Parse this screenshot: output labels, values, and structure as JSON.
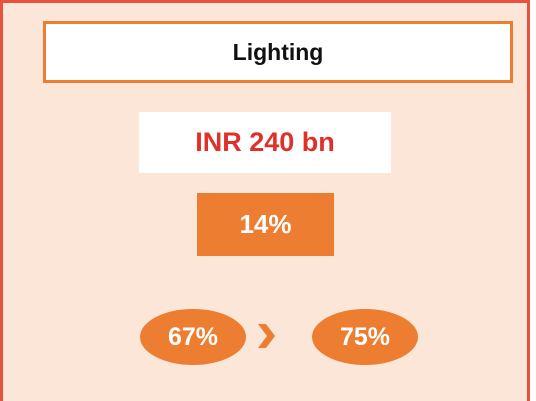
{
  "header": {
    "title": "Lighting"
  },
  "market_size": "INR 240 bn",
  "share": "14%",
  "transition": {
    "from": "67%",
    "to": "75%"
  }
}
